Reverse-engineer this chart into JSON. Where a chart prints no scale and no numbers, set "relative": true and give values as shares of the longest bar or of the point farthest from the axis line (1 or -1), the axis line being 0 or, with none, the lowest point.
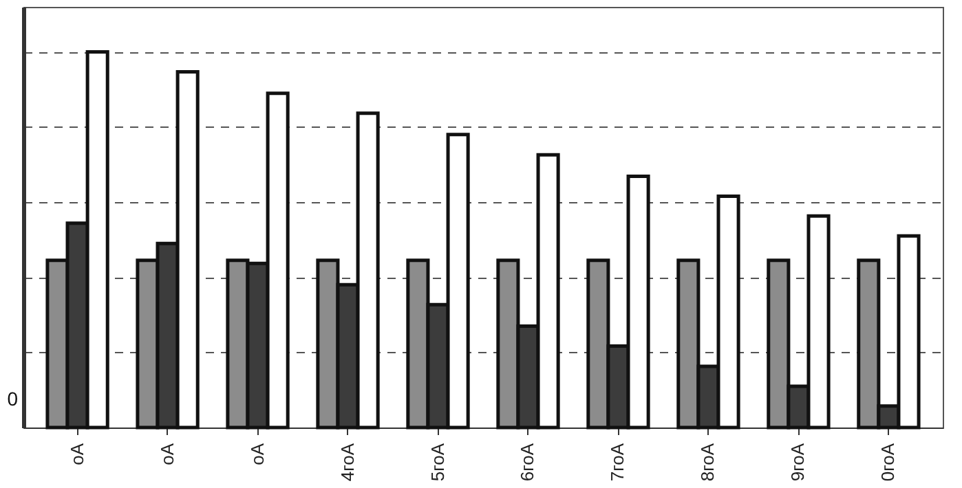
{
  "chart_data": {
    "type": "bar",
    "relative": true,
    "grid": "y",
    "categories": [
      "оА",
      "оА",
      "оА",
      "4гоА",
      "5гоА",
      "6гоА",
      "7гоА",
      "8гоА",
      "9гоА",
      "0гоА"
    ],
    "series": [
      {
        "color": "#8c8c8c",
        "values": [
          0.445,
          0.445,
          0.445,
          0.445,
          0.445,
          0.445,
          0.445,
          0.445,
          0.445,
          0.445
        ]
      },
      {
        "color": "#3c3c3c",
        "values": [
          0.544,
          0.49,
          0.437,
          0.38,
          0.327,
          0.27,
          0.217,
          0.163,
          0.11,
          0.057
        ]
      },
      {
        "color": "#ffffff",
        "values": [
          1,
          0.947,
          0.89,
          0.837,
          0.78,
          0.726,
          0.669,
          0.616,
          0.563,
          0.51
        ]
      }
    ],
    "annotations": [
      "0"
    ]
  }
}
